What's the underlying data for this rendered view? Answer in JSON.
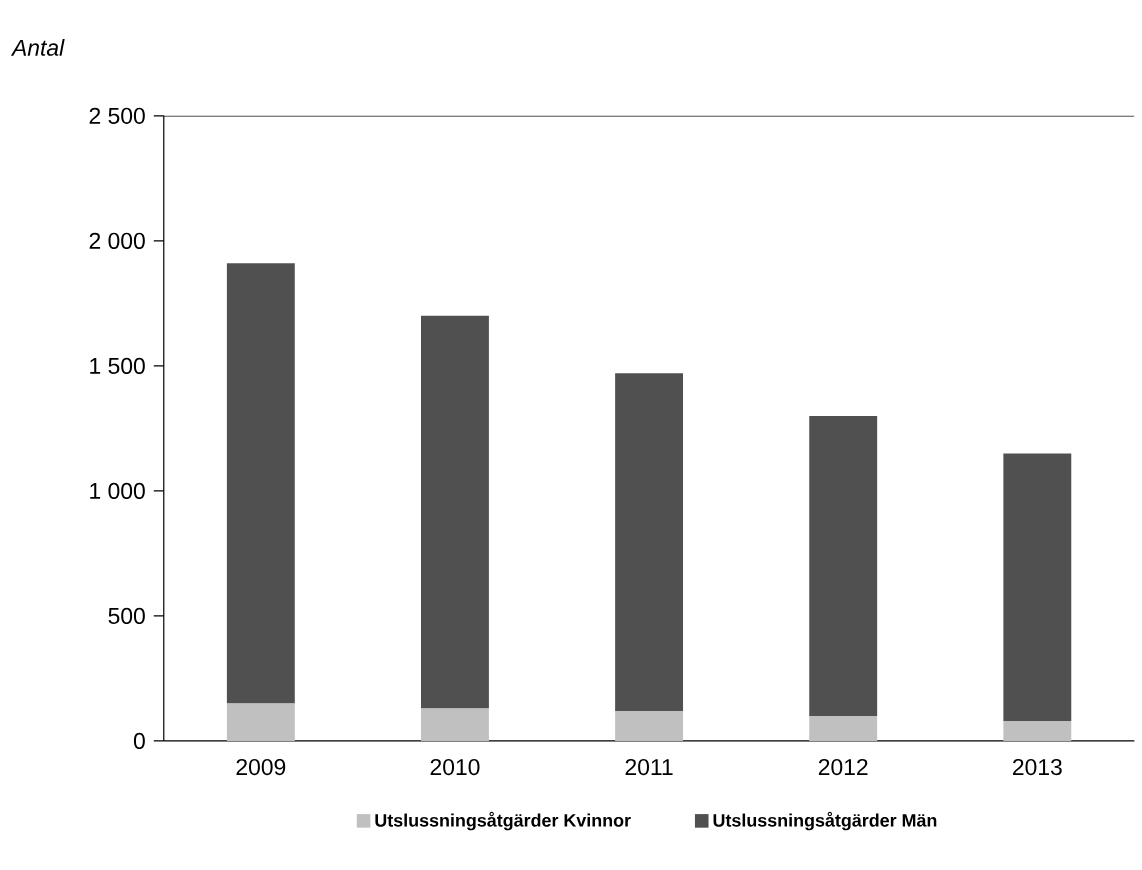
{
  "chart_data": {
    "type": "bar",
    "stacked": true,
    "ylabel": "Antal",
    "categories": [
      "2009",
      "2010",
      "2011",
      "2012",
      "2013"
    ],
    "series": [
      {
        "name": "Utslussningsåtgärder Kvinnor",
        "color": "#c0c0c0",
        "values": [
          150,
          130,
          120,
          100,
          80
        ]
      },
      {
        "name": "Utslussningsåtgärder Män",
        "color": "#505050",
        "values": [
          1760,
          1570,
          1350,
          1200,
          1070
        ]
      }
    ],
    "ylim": [
      0,
      2500
    ],
    "yticks": [
      {
        "value": 0,
        "label": "0"
      },
      {
        "value": 500,
        "label": "500"
      },
      {
        "value": 1000,
        "label": "1 000"
      },
      {
        "value": 1500,
        "label": "1 500"
      },
      {
        "value": 2000,
        "label": "2 000"
      },
      {
        "value": 2500,
        "label": "2 500"
      }
    ],
    "grid": false,
    "legend": "bottom"
  }
}
